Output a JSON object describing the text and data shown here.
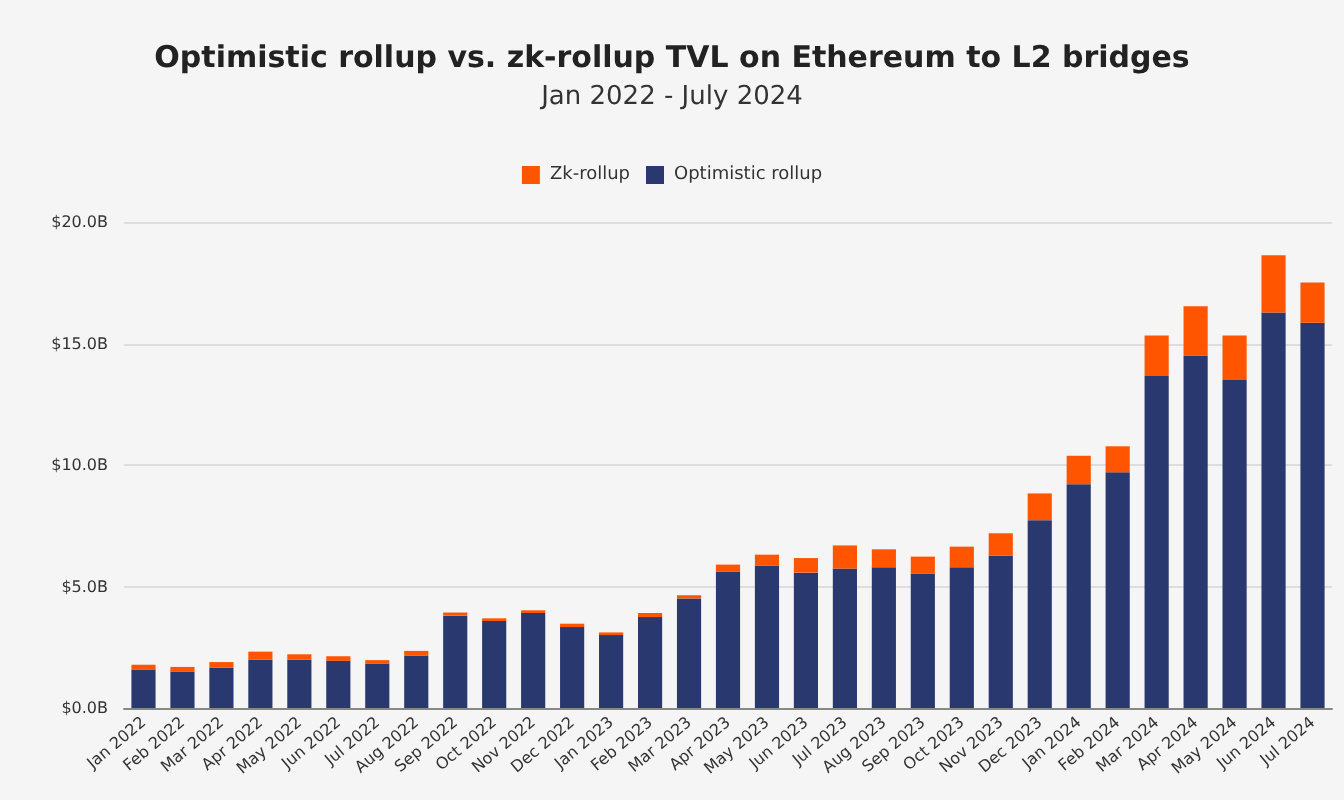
{
  "chart_data": {
    "type": "bar",
    "title": "Optimistic rollup vs. zk-rollup TVL on Ethereum to L2 bridges",
    "subtitle": "Jan 2022 - July 2024",
    "categories": [
      "Jan 2022",
      "Feb 2022",
      "Mar 2022",
      "Apr 2022",
      "May 2022",
      "Jun 2022",
      "Jul 2022",
      "Aug 2022",
      "Sep 2022",
      "Oct 2022",
      "Nov 2022",
      "Dec 2022",
      "Jan 2023",
      "Feb 2023",
      "Mar 2023",
      "Apr 2023",
      "May 2023",
      "Jun 2023",
      "Jul 2023",
      "Aug 2023",
      "Sep 2023",
      "Oct 2023",
      "Nov 2023",
      "Dec 2023",
      "Jan 2024",
      "Feb 2024",
      "Mar 2024",
      "Apr 2024",
      "May 2024",
      "Jun 2024",
      "Jul 2024"
    ],
    "series": [
      {
        "name": "Optimistic rollup",
        "color": "#29386f",
        "values": [
          1.58,
          1.5,
          1.67,
          2.0,
          2.0,
          1.94,
          1.83,
          2.16,
          3.8,
          3.58,
          3.91,
          3.33,
          3.0,
          3.74,
          4.51,
          5.6,
          5.85,
          5.57,
          5.74,
          5.79,
          5.52,
          5.79,
          6.28,
          7.73,
          9.21,
          9.7,
          13.66,
          14.51,
          13.5,
          16.28,
          15.85
        ]
      },
      {
        "name": "Zk-rollup",
        "color": "#ff5500",
        "values": [
          0.2,
          0.19,
          0.22,
          0.32,
          0.21,
          0.19,
          0.14,
          0.19,
          0.13,
          0.11,
          0.11,
          0.14,
          0.11,
          0.17,
          0.13,
          0.3,
          0.46,
          0.6,
          0.95,
          0.74,
          0.71,
          0.85,
          0.91,
          1.1,
          1.17,
          1.07,
          1.67,
          2.02,
          1.83,
          2.35,
          1.66
        ]
      }
    ],
    "stacked": true,
    "ylim": [
      0,
      20
    ],
    "yticks": [
      {
        "value": 0,
        "label": "$0.0B"
      },
      {
        "value": 5,
        "label": "$5.0B"
      },
      {
        "value": 10,
        "label": "$10.0B"
      },
      {
        "value": 15,
        "label": "$15.0B"
      },
      {
        "value": 20,
        "label": "$20.0B"
      }
    ],
    "grid": "y",
    "legend": "top"
  }
}
